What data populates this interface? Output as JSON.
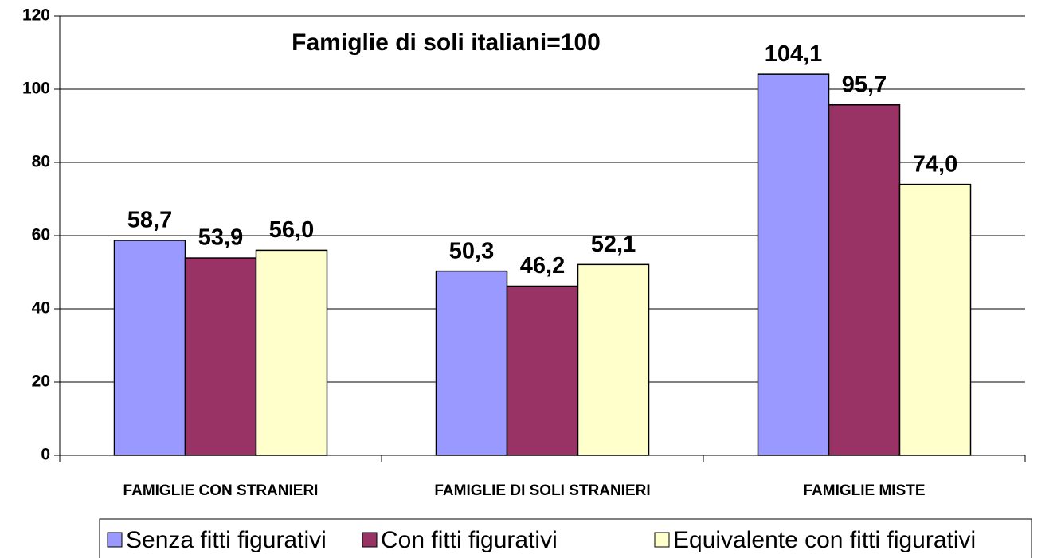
{
  "chart_data": {
    "type": "bar",
    "title": "Famiglie di soli italiani=100",
    "categories": [
      "FAMIGLIE CON STRANIERI",
      "FAMIGLIE DI SOLI STRANIERI",
      "FAMIGLIE MISTE"
    ],
    "series": [
      {
        "name": "Senza fitti figurativi",
        "color": "#9999ff",
        "values": [
          58.7,
          50.3,
          104.1
        ],
        "value_labels": [
          "58,7",
          "50,3",
          "104,1"
        ]
      },
      {
        "name": "Con fitti figurativi",
        "color": "#993366",
        "values": [
          53.9,
          46.2,
          95.7
        ],
        "value_labels": [
          "53,9",
          "46,2",
          "95,7"
        ]
      },
      {
        "name": "Equivalente con fitti figurativi",
        "color": "#ffffcc",
        "values": [
          56.0,
          52.1,
          74.0
        ],
        "value_labels": [
          "56,0",
          "52,1",
          "74,0"
        ]
      }
    ],
    "ylim": [
      0,
      120
    ],
    "yticks": [
      0,
      20,
      40,
      60,
      80,
      100,
      120
    ],
    "grid": true,
    "legend": "bottom"
  }
}
